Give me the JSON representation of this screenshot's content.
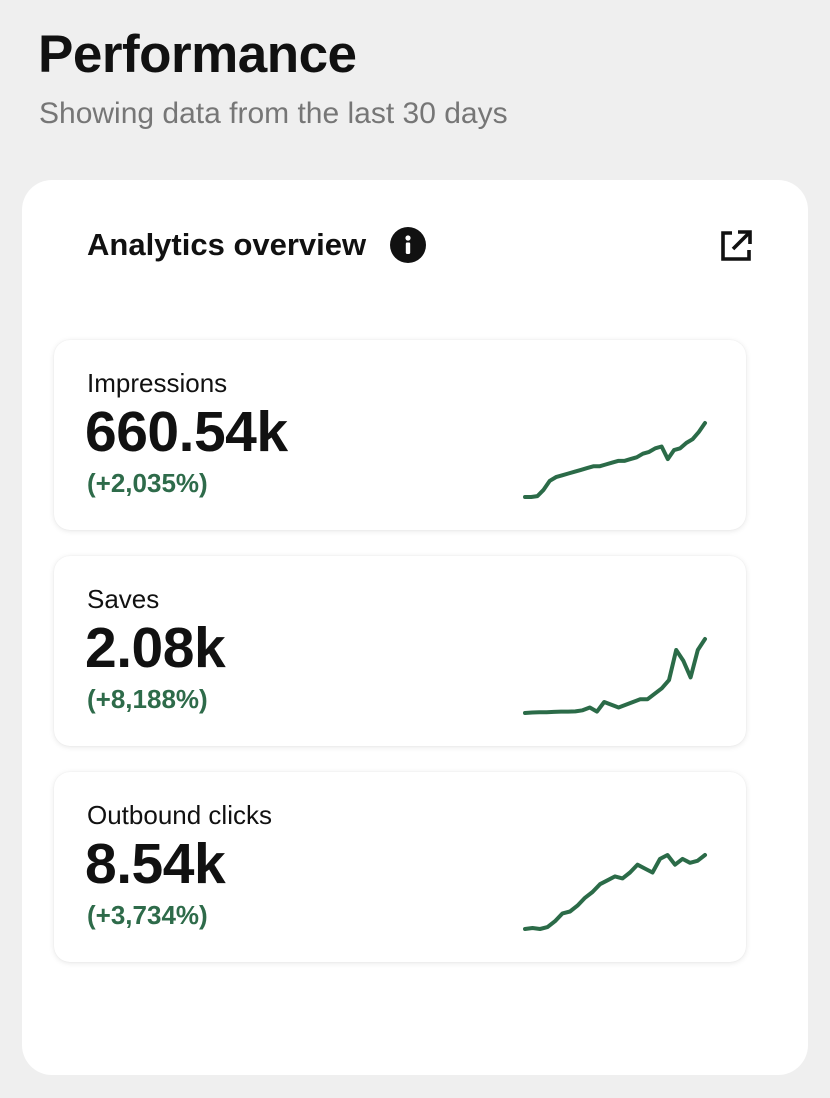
{
  "page": {
    "title": "Performance",
    "subtitle": "Showing data from the last 30 days"
  },
  "card": {
    "title": "Analytics overview",
    "info_icon": "info-icon",
    "open_icon": "external-link-icon"
  },
  "colors": {
    "accent_green": "#2e6b4a",
    "background": "#efefef"
  },
  "metrics": [
    {
      "label": "Impressions",
      "value": "660.54k",
      "change": "(+2,035%)",
      "trend": [
        0,
        0,
        0.5,
        4,
        9,
        11,
        12,
        13,
        14,
        15,
        16,
        17,
        17,
        18,
        19,
        20,
        20,
        21,
        22,
        24,
        25,
        27,
        28,
        21,
        26,
        27,
        30,
        32,
        36,
        41
      ]
    },
    {
      "label": "Saves",
      "value": "2.08k",
      "change": "(+8,188%)",
      "trend": [
        0,
        0.2,
        0.3,
        0.3,
        0.4,
        0.5,
        0.5,
        0.6,
        1,
        2,
        0.5,
        4,
        3,
        2,
        3,
        4,
        5,
        5,
        7,
        9,
        12,
        23,
        19,
        13,
        23,
        27
      ]
    },
    {
      "label": "Outbound clicks",
      "value": "8.54k",
      "change": "(+3,734%)",
      "trend": [
        0,
        0.5,
        0,
        1,
        4,
        8,
        9,
        12,
        16,
        19,
        23,
        25,
        27,
        26,
        29,
        33,
        31,
        29,
        36,
        38,
        33,
        36,
        34,
        35,
        38
      ]
    }
  ]
}
